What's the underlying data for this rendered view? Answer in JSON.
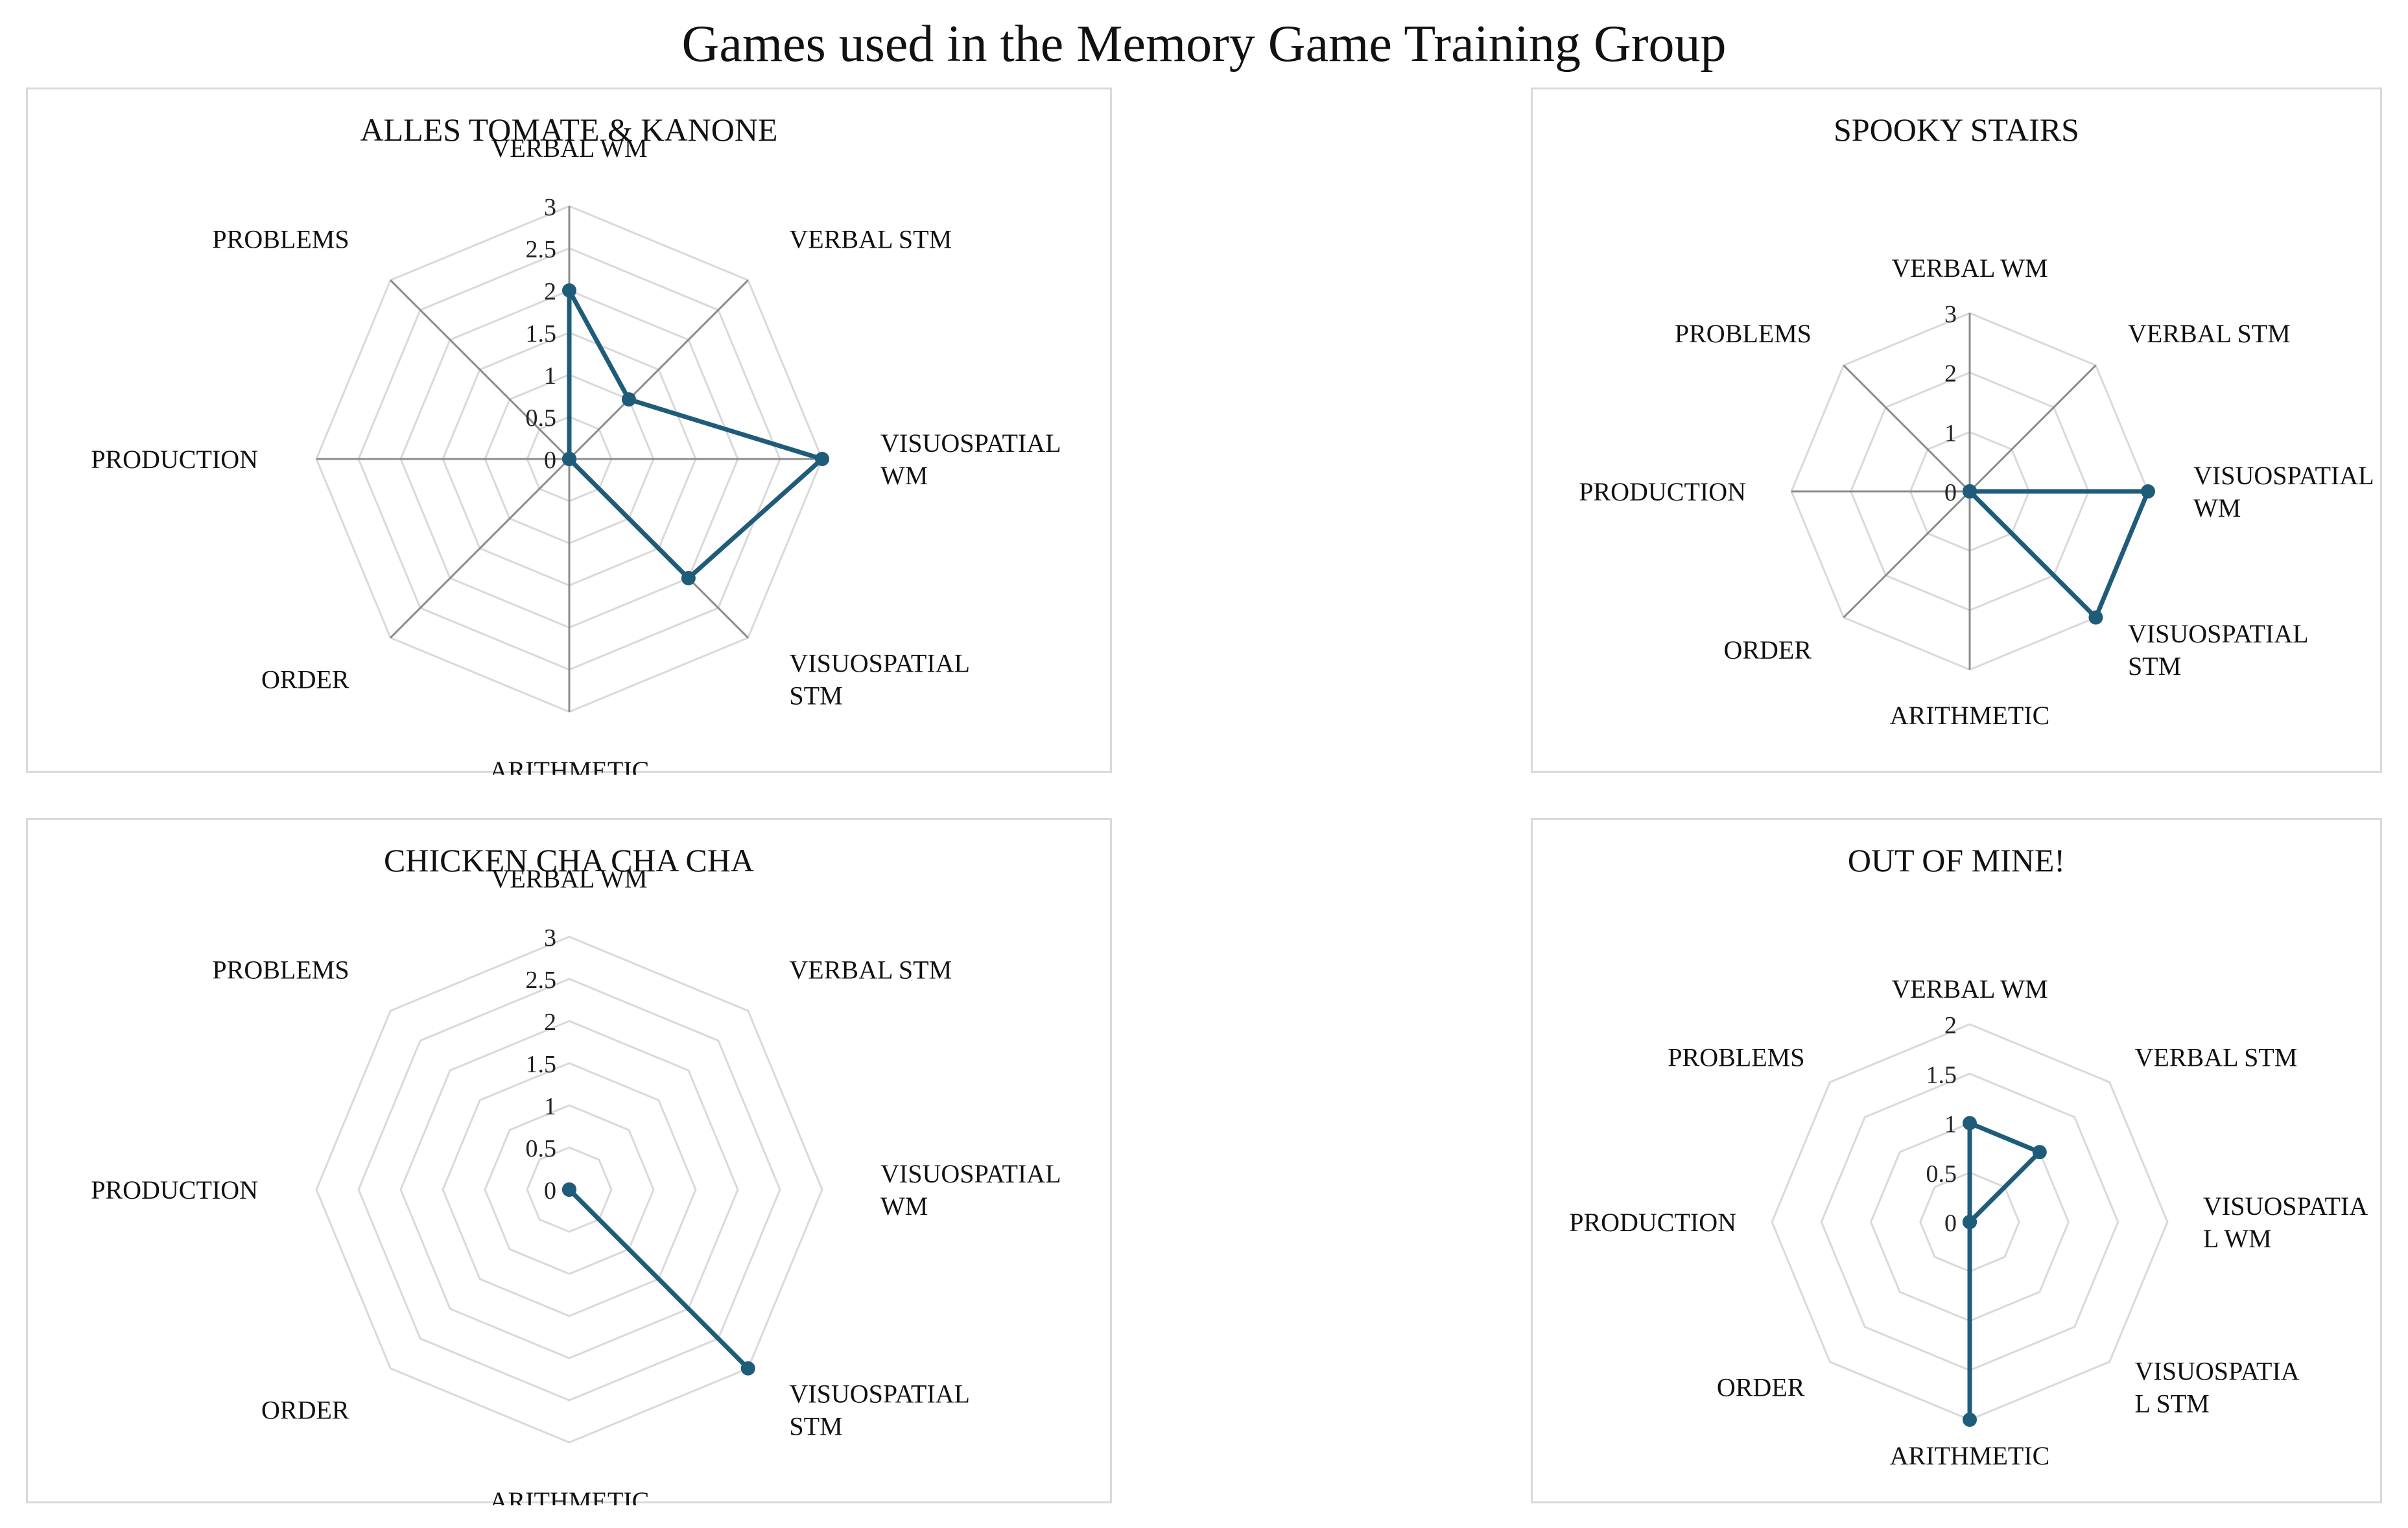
{
  "title": "Games used in the Memory Game Training Group",
  "colors": {
    "series": "#1f5c7a",
    "grid": "#d9d9d9",
    "spoke": "#8c8c8c",
    "border": "#d9d9d9"
  },
  "chart_data": [
    {
      "type": "radar",
      "title": "ALLES TOMATE & KANONE",
      "axes": [
        "VERBAL WM",
        "VERBAL STM",
        "VISUOSPATIAL WM",
        "VISUOSPATIAL STM",
        "ARITHMETIC",
        "ORDER",
        "PRODUCTION",
        "PROBLEMS"
      ],
      "axis_label_lines": [
        [
          "VERBAL WM"
        ],
        [
          "VERBAL STM"
        ],
        [
          "VISUOSPATIAL",
          "WM"
        ],
        [
          "VISUOSPATIAL",
          "STM"
        ],
        [
          "ARITHMETIC"
        ],
        [
          "ORDER"
        ],
        [
          "PRODUCTION"
        ],
        [
          "PROBLEMS"
        ]
      ],
      "ticks": [
        "0",
        "0.5",
        "1",
        "1.5",
        "2",
        "2.5",
        "3"
      ],
      "rmax": 3,
      "values": [
        2,
        1,
        3,
        2,
        0,
        0,
        0,
        0
      ],
      "spokes": true,
      "grid": true
    },
    {
      "type": "radar",
      "title": "SPOOKY STAIRS",
      "axes": [
        "VERBAL WM",
        "VERBAL STM",
        "VISUOSPATIAL WM",
        "VISUOSPATIAL STM",
        "ARITHMETIC",
        "ORDER",
        "PRODUCTION",
        "PROBLEMS"
      ],
      "axis_label_lines": [
        [
          "VERBAL WM"
        ],
        [
          "VERBAL STM"
        ],
        [
          "VISUOSPATIAL",
          "WM"
        ],
        [
          "VISUOSPATIAL",
          "STM"
        ],
        [
          "ARITHMETIC"
        ],
        [
          "ORDER"
        ],
        [
          "PRODUCTION"
        ],
        [
          "PROBLEMS"
        ]
      ],
      "ticks": [
        "0",
        "1",
        "2",
        "3"
      ],
      "rmax": 3,
      "values": [
        0,
        0,
        3,
        3,
        0,
        0,
        0,
        0
      ],
      "spokes": true,
      "grid": true
    },
    {
      "type": "radar",
      "title": "CHICKEN CHA CHA CHA",
      "axes": [
        "VERBAL WM",
        "VERBAL STM",
        "VISUOSPATIAL WM",
        "VISUOSPATIAL STM",
        "ARITHMETIC",
        "ORDER",
        "PRODUCTION",
        "PROBLEMS"
      ],
      "axis_label_lines": [
        [
          "VERBAL WM"
        ],
        [
          "VERBAL STM"
        ],
        [
          "VISUOSPATIAL",
          "WM"
        ],
        [
          "VISUOSPATIAL",
          "STM"
        ],
        [
          "ARITHMETIC"
        ],
        [
          "ORDER"
        ],
        [
          "PRODUCTION"
        ],
        [
          "PROBLEMS"
        ]
      ],
      "ticks": [
        "0",
        "0.5",
        "1",
        "1.5",
        "2",
        "2.5",
        "3"
      ],
      "rmax": 3,
      "values": [
        0,
        0,
        0,
        3,
        0,
        0,
        0,
        0
      ],
      "spokes": false,
      "grid": true
    },
    {
      "type": "radar",
      "title": "OUT OF MINE!",
      "axes": [
        "VERBAL WM",
        "VERBAL STM",
        "VISUOSPATIAL WM",
        "VISUOSPATIAL STM",
        "ARITHMETIC",
        "ORDER",
        "PRODUCTION",
        "PROBLEMS"
      ],
      "axis_label_lines": [
        [
          "VERBAL WM"
        ],
        [
          "VERBAL STM"
        ],
        [
          "VISUOSPATIA",
          "L WM"
        ],
        [
          "VISUOSPATIA",
          "L STM"
        ],
        [
          "ARITHMETIC"
        ],
        [
          "ORDER"
        ],
        [
          "PRODUCTION"
        ],
        [
          "PROBLEMS"
        ]
      ],
      "ticks": [
        "0",
        "0.5",
        "1",
        "1.5",
        "2"
      ],
      "rmax": 2,
      "values": [
        1,
        1,
        0,
        0,
        2,
        0,
        0,
        0
      ],
      "spokes": false,
      "grid": true
    }
  ]
}
